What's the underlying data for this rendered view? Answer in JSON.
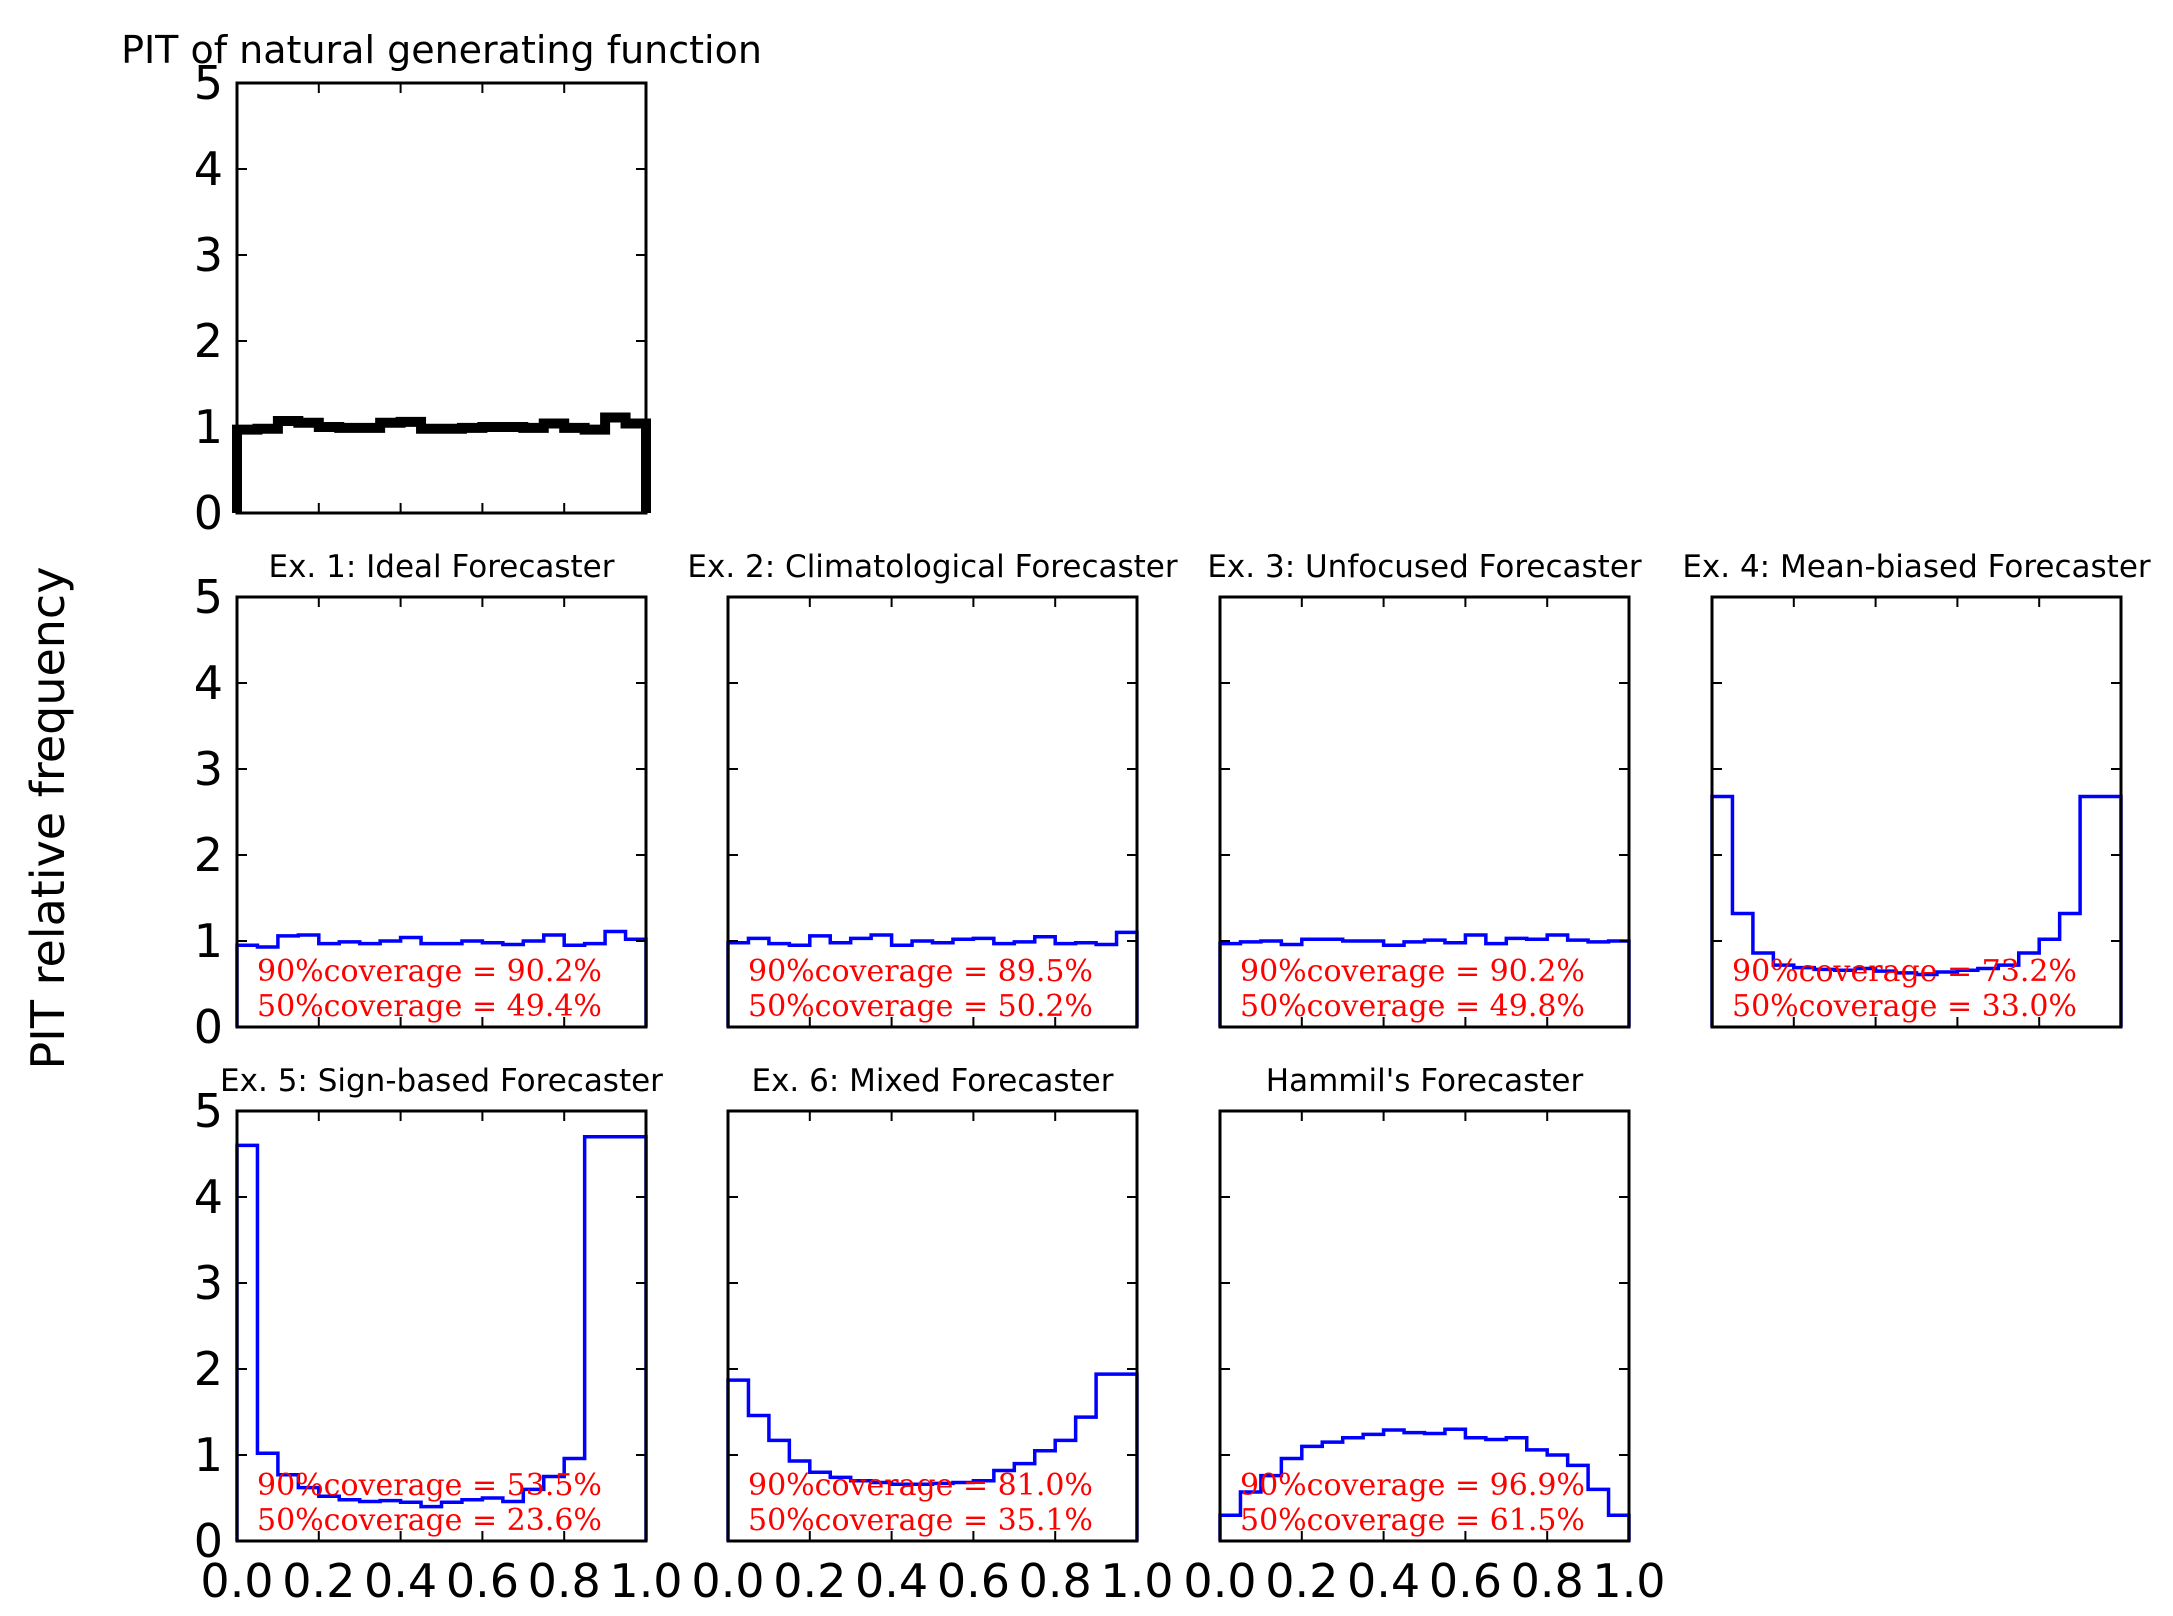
{
  "ylabel": "PIT relative frequency",
  "colors": {
    "hist": "#0000ff",
    "natural": "#000000",
    "coverage_text": "#ff0000"
  },
  "chart_data": [
    {
      "type": "bar",
      "title": "PIT of natural generating function",
      "xlim": [
        0,
        1
      ],
      "ylim": [
        0,
        5
      ],
      "yticks": [
        "0",
        "1",
        "2",
        "3",
        "4",
        "5"
      ],
      "xticks": [],
      "bins": 20,
      "values": [
        0.97,
        0.98,
        1.07,
        1.05,
        1.0,
        0.99,
        0.99,
        1.05,
        1.06,
        0.98,
        0.98,
        0.99,
        1.0,
        1.0,
        0.99,
        1.04,
        0.99,
        0.97,
        1.11,
        1.04
      ],
      "coverage": []
    },
    {
      "type": "bar",
      "title": "Ex. 1: Ideal Forecaster",
      "xlim": [
        0,
        1
      ],
      "ylim": [
        0,
        5
      ],
      "yticks": [
        "0",
        "1",
        "2",
        "3",
        "4",
        "5"
      ],
      "xticks": [],
      "bins": 20,
      "values": [
        0.95,
        0.93,
        1.06,
        1.07,
        0.97,
        0.99,
        0.97,
        1.0,
        1.04,
        0.97,
        0.97,
        1.0,
        0.98,
        0.96,
        1.0,
        1.07,
        0.95,
        0.97,
        1.11,
        1.02
      ],
      "coverage": [
        "90%coverage = 90.2%",
        "50%coverage = 49.4%"
      ]
    },
    {
      "type": "bar",
      "title": "Ex. 2: Climatological Forecaster",
      "xlim": [
        0,
        1
      ],
      "ylim": [
        0,
        5
      ],
      "yticks": [],
      "xticks": [],
      "bins": 20,
      "values": [
        0.98,
        1.03,
        0.97,
        0.95,
        1.06,
        0.98,
        1.03,
        1.07,
        0.95,
        1.0,
        0.98,
        1.02,
        1.03,
        0.97,
        0.99,
        1.05,
        0.97,
        0.98,
        0.96,
        1.1
      ],
      "coverage": [
        "90%coverage = 89.5%",
        "50%coverage = 50.2%"
      ]
    },
    {
      "type": "bar",
      "title": "Ex. 3: Unfocused Forecaster",
      "xlim": [
        0,
        1
      ],
      "ylim": [
        0,
        5
      ],
      "yticks": [],
      "xticks": [],
      "bins": 20,
      "values": [
        0.97,
        0.99,
        1.0,
        0.96,
        1.02,
        1.02,
        1.0,
        1.0,
        0.95,
        0.99,
        1.01,
        0.98,
        1.07,
        0.97,
        1.03,
        1.02,
        1.07,
        1.01,
        0.99,
        1.0
      ],
      "coverage": [
        "90%coverage = 90.2%",
        "50%coverage = 49.8%"
      ]
    },
    {
      "type": "bar",
      "title": "Ex. 4: Mean-biased Forecaster",
      "xlim": [
        0,
        1
      ],
      "ylim": [
        0,
        5
      ],
      "yticks": [],
      "xticks": [],
      "bins": 20,
      "values": [
        2.68,
        1.32,
        0.86,
        0.72,
        0.69,
        0.67,
        0.66,
        0.68,
        0.65,
        0.63,
        0.61,
        0.64,
        0.66,
        0.68,
        0.72,
        0.86,
        1.02,
        1.32,
        2.68,
        2.68
      ],
      "coverage": [
        "90%coverage = 73.2%",
        "50%coverage = 33.0%"
      ]
    },
    {
      "type": "bar",
      "title": "Ex. 5: Sign-based Forecaster",
      "xlim": [
        0,
        1
      ],
      "ylim": [
        0,
        5
      ],
      "yticks": [
        "0",
        "1",
        "2",
        "3",
        "4",
        "5"
      ],
      "xticks": [
        "0.0",
        "0.2",
        "0.4",
        "0.6",
        "0.8",
        "1.0"
      ],
      "bins": 20,
      "values": [
        4.6,
        1.02,
        0.77,
        0.62,
        0.52,
        0.48,
        0.46,
        0.47,
        0.45,
        0.4,
        0.45,
        0.48,
        0.5,
        0.46,
        0.6,
        0.75,
        0.96,
        4.7,
        4.7,
        4.7
      ],
      "coverage": [
        "90%coverage = 53.5%",
        "50%coverage = 23.6%"
      ]
    },
    {
      "type": "bar",
      "title": "Ex. 6: Mixed Forecaster",
      "xlim": [
        0,
        1
      ],
      "ylim": [
        0,
        5
      ],
      "yticks": [],
      "xticks": [
        "0.0",
        "0.2",
        "0.4",
        "0.6",
        "0.8",
        "1.0"
      ],
      "bins": 20,
      "values": [
        1.87,
        1.46,
        1.17,
        0.93,
        0.8,
        0.74,
        0.7,
        0.68,
        0.66,
        0.66,
        0.67,
        0.68,
        0.7,
        0.82,
        0.9,
        1.05,
        1.17,
        1.44,
        1.94,
        1.94
      ],
      "coverage": [
        "90%coverage = 81.0%",
        "50%coverage = 35.1%"
      ]
    },
    {
      "type": "bar",
      "title": "Hammil's Forecaster",
      "xlim": [
        0,
        1
      ],
      "ylim": [
        0,
        5
      ],
      "yticks": [],
      "xticks": [
        "0.0",
        "0.2",
        "0.4",
        "0.6",
        "0.8",
        "1.0"
      ],
      "bins": 20,
      "values": [
        0.3,
        0.57,
        0.76,
        0.96,
        1.1,
        1.15,
        1.2,
        1.24,
        1.29,
        1.26,
        1.25,
        1.3,
        1.2,
        1.18,
        1.2,
        1.06,
        1.0,
        0.88,
        0.6,
        0.3
      ],
      "coverage": [
        "90%coverage = 96.9%",
        "50%coverage = 61.5%"
      ]
    }
  ]
}
